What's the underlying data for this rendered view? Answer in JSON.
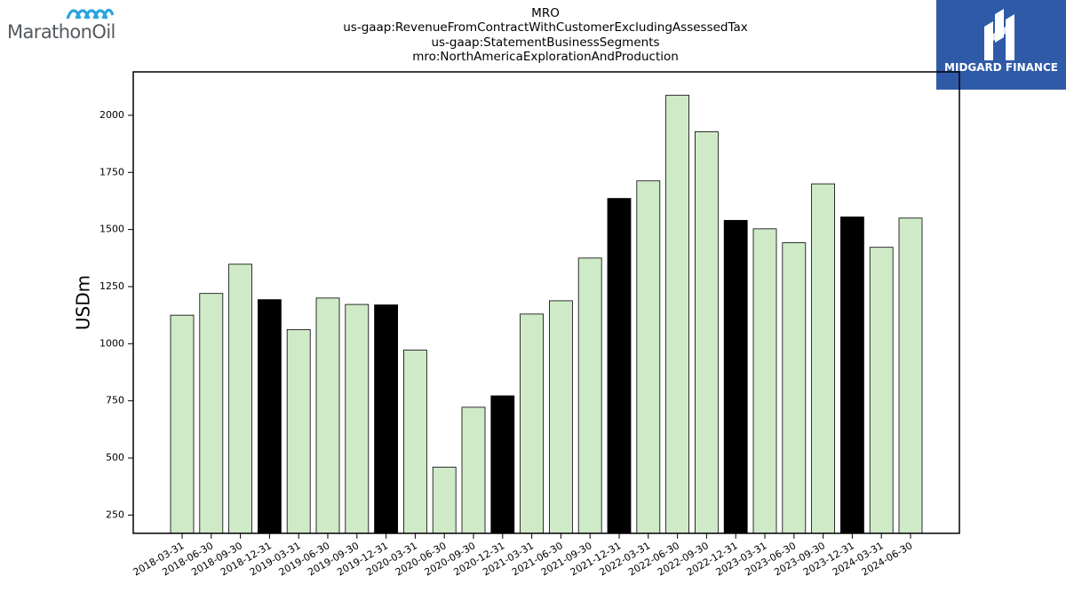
{
  "logos": {
    "left_brand": "MarathonOil",
    "left_icon": "marathon-wave-icon",
    "right_brand": "MIDGARD FINANCE",
    "right_icon": "midgard-m-icon",
    "right_bg": "#2f5aa8"
  },
  "chart_data": {
    "type": "bar",
    "title": [
      "MRO",
      "us-gaap:RevenueFromContractWithCustomerExcludingAssessedTax",
      "us-gaap:StatementBusinessSegments",
      "mro:NorthAmericaExplorationAndProduction"
    ],
    "xlabel": "",
    "ylabel": "USDm",
    "ylim": [
      170,
      2190
    ],
    "yticks": [
      250,
      500,
      750,
      1000,
      1250,
      1500,
      1750,
      2000
    ],
    "grid": false,
    "colors": {
      "quarter": "#cfeac7",
      "year_end": "#000000",
      "edge": "#000000"
    },
    "categories": [
      "2018-03-31",
      "2018-06-30",
      "2018-09-30",
      "2018-12-31",
      "2019-03-31",
      "2019-06-30",
      "2019-09-30",
      "2019-12-31",
      "2020-03-31",
      "2020-06-30",
      "2020-09-30",
      "2020-12-31",
      "2021-03-31",
      "2021-06-30",
      "2021-09-30",
      "2021-12-31",
      "2022-03-31",
      "2022-06-30",
      "2022-09-30",
      "2022-12-31",
      "2023-03-31",
      "2023-06-30",
      "2023-09-30",
      "2023-12-31",
      "2024-03-31",
      "2024-06-30"
    ],
    "values": [
      1125,
      1220,
      1348,
      1193,
      1062,
      1200,
      1172,
      1170,
      972,
      460,
      722,
      772,
      1130,
      1188,
      1375,
      1636,
      1713,
      2088,
      1928,
      1540,
      1503,
      1442,
      1700,
      1555,
      1422,
      1550
    ],
    "year_end": [
      false,
      false,
      false,
      true,
      false,
      false,
      false,
      true,
      false,
      false,
      false,
      true,
      false,
      false,
      false,
      true,
      false,
      false,
      false,
      true,
      false,
      false,
      false,
      true,
      false,
      false
    ]
  }
}
